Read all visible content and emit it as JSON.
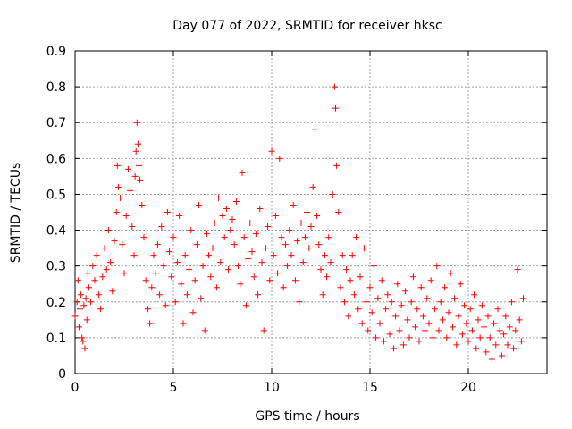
{
  "chart_data": {
    "type": "scatter",
    "title": "Day 077 of 2022, SRMTID for receiver hksc",
    "xlabel": "GPS time / hours",
    "ylabel": "SRMTID / TECUs",
    "xlim": [
      0,
      24
    ],
    "ylim": [
      0,
      0.9
    ],
    "x_ticks": [
      0,
      5,
      10,
      15,
      20
    ],
    "y_ticks": [
      0,
      0.1,
      0.2,
      0.3,
      0.4,
      0.5,
      0.6,
      0.7,
      0.8,
      0.9
    ],
    "x_tick_labels": [
      "0",
      "5",
      "10",
      "15",
      "20"
    ],
    "y_tick_labels": [
      "0",
      "0.1",
      "0.2",
      "0.3",
      "0.4",
      "0.5",
      "0.6",
      "0.7",
      "0.8",
      "0.9"
    ],
    "grid": true,
    "marker": "+",
    "marker_color": "#ff0000",
    "series_envelope_note": "approximate cloud of points: x from 0 to ~22.8 hours",
    "series": [
      {
        "name": "SRMTID",
        "points": [
          [
            0.0,
            0.16
          ],
          [
            0.1,
            0.2
          ],
          [
            0.15,
            0.26
          ],
          [
            0.2,
            0.13
          ],
          [
            0.25,
            0.18
          ],
          [
            0.3,
            0.22
          ],
          [
            0.35,
            0.1
          ],
          [
            0.4,
            0.09
          ],
          [
            0.45,
            0.19
          ],
          [
            0.5,
            0.07
          ],
          [
            0.55,
            0.21
          ],
          [
            0.6,
            0.15
          ],
          [
            0.65,
            0.28
          ],
          [
            0.7,
            0.24
          ],
          [
            0.8,
            0.2
          ],
          [
            0.9,
            0.3
          ],
          [
            1.0,
            0.26
          ],
          [
            1.1,
            0.33
          ],
          [
            1.2,
            0.22
          ],
          [
            1.3,
            0.18
          ],
          [
            1.4,
            0.27
          ],
          [
            1.5,
            0.35
          ],
          [
            1.6,
            0.29
          ],
          [
            1.7,
            0.4
          ],
          [
            1.8,
            0.31
          ],
          [
            1.9,
            0.23
          ],
          [
            2.0,
            0.37
          ],
          [
            2.1,
            0.45
          ],
          [
            2.15,
            0.58
          ],
          [
            2.2,
            0.52
          ],
          [
            2.3,
            0.49
          ],
          [
            2.4,
            0.36
          ],
          [
            2.5,
            0.28
          ],
          [
            2.6,
            0.44
          ],
          [
            2.7,
            0.57
          ],
          [
            2.8,
            0.51
          ],
          [
            2.9,
            0.41
          ],
          [
            3.0,
            0.33
          ],
          [
            3.05,
            0.55
          ],
          [
            3.1,
            0.62
          ],
          [
            3.15,
            0.7
          ],
          [
            3.2,
            0.64
          ],
          [
            3.25,
            0.58
          ],
          [
            3.3,
            0.54
          ],
          [
            3.4,
            0.47
          ],
          [
            3.5,
            0.38
          ],
          [
            3.6,
            0.26
          ],
          [
            3.7,
            0.18
          ],
          [
            3.8,
            0.14
          ],
          [
            3.9,
            0.24
          ],
          [
            4.0,
            0.33
          ],
          [
            4.1,
            0.28
          ],
          [
            4.2,
            0.36
          ],
          [
            4.3,
            0.22
          ],
          [
            4.4,
            0.41
          ],
          [
            4.5,
            0.3
          ],
          [
            4.6,
            0.19
          ],
          [
            4.7,
            0.45
          ],
          [
            4.8,
            0.34
          ],
          [
            4.9,
            0.27
          ],
          [
            5.0,
            0.38
          ],
          [
            5.1,
            0.2
          ],
          [
            5.2,
            0.31
          ],
          [
            5.3,
            0.44
          ],
          [
            5.4,
            0.25
          ],
          [
            5.5,
            0.14
          ],
          [
            5.6,
            0.33
          ],
          [
            5.7,
            0.22
          ],
          [
            5.8,
            0.29
          ],
          [
            5.9,
            0.4
          ],
          [
            6.0,
            0.17
          ],
          [
            6.1,
            0.26
          ],
          [
            6.2,
            0.36
          ],
          [
            6.3,
            0.47
          ],
          [
            6.4,
            0.21
          ],
          [
            6.5,
            0.3
          ],
          [
            6.6,
            0.12
          ],
          [
            6.7,
            0.39
          ],
          [
            6.8,
            0.33
          ],
          [
            6.9,
            0.27
          ],
          [
            7.0,
            0.35
          ],
          [
            7.1,
            0.42
          ],
          [
            7.2,
            0.24
          ],
          [
            7.3,
            0.49
          ],
          [
            7.4,
            0.31
          ],
          [
            7.5,
            0.44
          ],
          [
            7.6,
            0.38
          ],
          [
            7.7,
            0.46
          ],
          [
            7.8,
            0.29
          ],
          [
            7.9,
            0.4
          ],
          [
            8.0,
            0.43
          ],
          [
            8.1,
            0.36
          ],
          [
            8.2,
            0.48
          ],
          [
            8.3,
            0.3
          ],
          [
            8.4,
            0.25
          ],
          [
            8.5,
            0.56
          ],
          [
            8.6,
            0.38
          ],
          [
            8.7,
            0.19
          ],
          [
            8.8,
            0.32
          ],
          [
            8.9,
            0.42
          ],
          [
            9.0,
            0.34
          ],
          [
            9.1,
            0.27
          ],
          [
            9.2,
            0.39
          ],
          [
            9.3,
            0.22
          ],
          [
            9.4,
            0.46
          ],
          [
            9.5,
            0.31
          ],
          [
            9.6,
            0.12
          ],
          [
            9.7,
            0.35
          ],
          [
            9.8,
            0.41
          ],
          [
            9.9,
            0.26
          ],
          [
            10.0,
            0.62
          ],
          [
            10.1,
            0.33
          ],
          [
            10.2,
            0.44
          ],
          [
            10.3,
            0.28
          ],
          [
            10.4,
            0.6
          ],
          [
            10.5,
            0.38
          ],
          [
            10.6,
            0.24
          ],
          [
            10.7,
            0.36
          ],
          [
            10.8,
            0.3
          ],
          [
            10.9,
            0.4
          ],
          [
            11.0,
            0.33
          ],
          [
            11.1,
            0.47
          ],
          [
            11.2,
            0.26
          ],
          [
            11.3,
            0.37
          ],
          [
            11.4,
            0.2
          ],
          [
            11.5,
            0.42
          ],
          [
            11.6,
            0.31
          ],
          [
            11.7,
            0.38
          ],
          [
            11.8,
            0.45
          ],
          [
            11.9,
            0.35
          ],
          [
            12.0,
            0.41
          ],
          [
            12.1,
            0.52
          ],
          [
            12.2,
            0.68
          ],
          [
            12.3,
            0.44
          ],
          [
            12.4,
            0.36
          ],
          [
            12.5,
            0.29
          ],
          [
            12.6,
            0.22
          ],
          [
            12.7,
            0.33
          ],
          [
            12.8,
            0.27
          ],
          [
            12.9,
            0.38
          ],
          [
            13.0,
            0.31
          ],
          [
            13.1,
            0.5
          ],
          [
            13.2,
            0.8
          ],
          [
            13.25,
            0.74
          ],
          [
            13.3,
            0.58
          ],
          [
            13.4,
            0.45
          ],
          [
            13.5,
            0.24
          ],
          [
            13.6,
            0.33
          ],
          [
            13.7,
            0.2
          ],
          [
            13.8,
            0.29
          ],
          [
            13.9,
            0.16
          ],
          [
            14.0,
            0.26
          ],
          [
            14.1,
            0.33
          ],
          [
            14.2,
            0.22
          ],
          [
            14.3,
            0.38
          ],
          [
            14.4,
            0.18
          ],
          [
            14.5,
            0.27
          ],
          [
            14.6,
            0.14
          ],
          [
            14.7,
            0.35
          ],
          [
            14.8,
            0.2
          ],
          [
            14.9,
            0.12
          ],
          [
            15.0,
            0.24
          ],
          [
            15.1,
            0.17
          ],
          [
            15.2,
            0.3
          ],
          [
            15.3,
            0.1
          ],
          [
            15.4,
            0.21
          ],
          [
            15.5,
            0.14
          ],
          [
            15.6,
            0.26
          ],
          [
            15.7,
            0.09
          ],
          [
            15.8,
            0.18
          ],
          [
            15.9,
            0.22
          ],
          [
            16.0,
            0.11
          ],
          [
            16.1,
            0.2
          ],
          [
            16.2,
            0.07
          ],
          [
            16.3,
            0.16
          ],
          [
            16.4,
            0.25
          ],
          [
            16.5,
            0.12
          ],
          [
            16.6,
            0.19
          ],
          [
            16.7,
            0.08
          ],
          [
            16.8,
            0.23
          ],
          [
            16.9,
            0.15
          ],
          [
            17.0,
            0.1
          ],
          [
            17.1,
            0.2
          ],
          [
            17.2,
            0.27
          ],
          [
            17.3,
            0.13
          ],
          [
            17.4,
            0.18
          ],
          [
            17.5,
            0.09
          ],
          [
            17.6,
            0.24
          ],
          [
            17.7,
            0.16
          ],
          [
            17.8,
            0.12
          ],
          [
            17.9,
            0.21
          ],
          [
            18.0,
            0.14
          ],
          [
            18.1,
            0.26
          ],
          [
            18.2,
            0.1
          ],
          [
            18.3,
            0.18
          ],
          [
            18.4,
            0.3
          ],
          [
            18.5,
            0.12
          ],
          [
            18.6,
            0.2
          ],
          [
            18.7,
            0.15
          ],
          [
            18.8,
            0.24
          ],
          [
            18.9,
            0.1
          ],
          [
            19.0,
            0.17
          ],
          [
            19.1,
            0.28
          ],
          [
            19.2,
            0.13
          ],
          [
            19.3,
            0.21
          ],
          [
            19.4,
            0.08
          ],
          [
            19.5,
            0.16
          ],
          [
            19.6,
            0.25
          ],
          [
            19.7,
            0.11
          ],
          [
            19.8,
            0.19
          ],
          [
            19.9,
            0.14
          ],
          [
            20.0,
            0.09
          ],
          [
            20.1,
            0.18
          ],
          [
            20.2,
            0.12
          ],
          [
            20.3,
            0.22
          ],
          [
            20.4,
            0.07
          ],
          [
            20.5,
            0.15
          ],
          [
            20.6,
            0.1
          ],
          [
            20.7,
            0.19
          ],
          [
            20.8,
            0.13
          ],
          [
            20.9,
            0.06
          ],
          [
            21.0,
            0.16
          ],
          [
            21.1,
            0.1
          ],
          [
            21.2,
            0.04
          ],
          [
            21.3,
            0.14
          ],
          [
            21.4,
            0.08
          ],
          [
            21.5,
            0.18
          ],
          [
            21.6,
            0.12
          ],
          [
            21.7,
            0.05
          ],
          [
            21.8,
            0.11
          ],
          [
            21.9,
            0.16
          ],
          [
            22.0,
            0.08
          ],
          [
            22.1,
            0.13
          ],
          [
            22.2,
            0.2
          ],
          [
            22.3,
            0.07
          ],
          [
            22.4,
            0.12
          ],
          [
            22.5,
            0.29
          ],
          [
            22.6,
            0.15
          ],
          [
            22.7,
            0.09
          ],
          [
            22.8,
            0.21
          ]
        ]
      }
    ]
  }
}
